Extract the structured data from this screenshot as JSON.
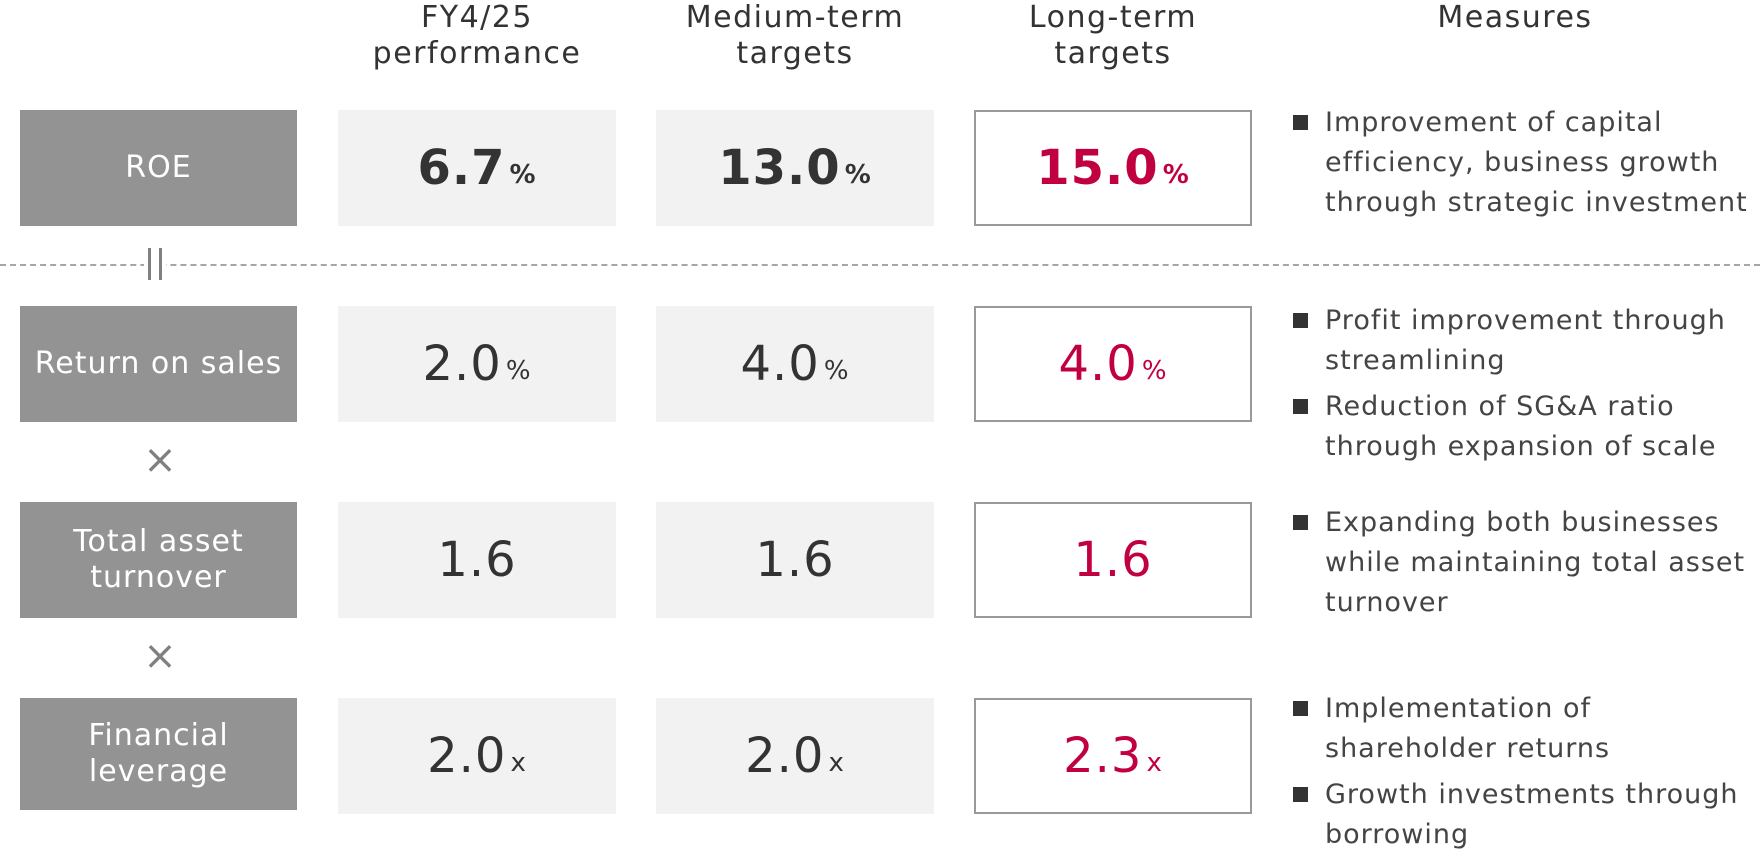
{
  "headers": {
    "performance": "FY4/25\nperformance",
    "medium": "Medium-term\ntargets",
    "long": "Long-term\ntargets",
    "measures": "Measures"
  },
  "rows": [
    {
      "label": "ROE",
      "performance": {
        "value": "6.7",
        "unit": "%"
      },
      "medium": {
        "value": "13.0",
        "unit": "%"
      },
      "long": {
        "value": "15.0",
        "unit": "%"
      },
      "measures": [
        "Improvement of capital efficiency, business growth through strategic investment"
      ]
    },
    {
      "label": "Return on sales",
      "performance": {
        "value": "2.0",
        "unit": "%"
      },
      "medium": {
        "value": "4.0",
        "unit": "%"
      },
      "long": {
        "value": "4.0",
        "unit": "%"
      },
      "measures": [
        "Profit improvement through streamlining",
        "Reduction of SG&A ratio through expansion of scale"
      ]
    },
    {
      "label": "Total asset\nturnover",
      "performance": {
        "value": "1.6",
        "unit": ""
      },
      "medium": {
        "value": "1.6",
        "unit": ""
      },
      "long": {
        "value": "1.6",
        "unit": ""
      },
      "measures": [
        "Expanding both businesses while maintaining total asset turnover"
      ]
    },
    {
      "label": "Financial\nleverage",
      "performance": {
        "value": "2.0",
        "unit": "x"
      },
      "medium": {
        "value": "2.0",
        "unit": "x"
      },
      "long": {
        "value": "2.3",
        "unit": "x"
      },
      "measures": [
        "Implementation of shareholder returns",
        "Growth investments through borrowing"
      ]
    }
  ],
  "operators": {
    "equals": "=",
    "times": "×"
  },
  "colors": {
    "label_bg": "#939393",
    "value_bg": "#f2f2f2",
    "target_text": "#c0003f",
    "target_border": "#999999"
  }
}
